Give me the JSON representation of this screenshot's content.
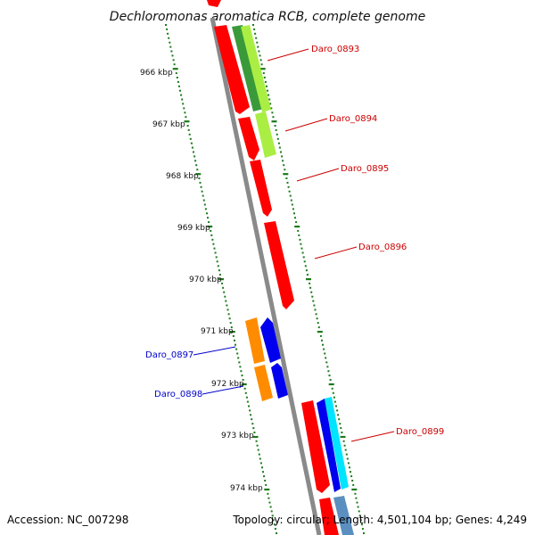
{
  "title": "Dechloromonas aromatica RCB, complete genome",
  "accession": "Accession: NC_007298",
  "summary": "Topology: circular; Length: 4,501,104 bp; Genes: 4,249",
  "ticks": [
    {
      "label": "966 kbp"
    },
    {
      "label": "967 kbp"
    },
    {
      "label": "968 kbp"
    },
    {
      "label": "969 kbp"
    },
    {
      "label": "970 kbp"
    },
    {
      "label": "971 kbp"
    },
    {
      "label": "972 kbp"
    },
    {
      "label": "973 kbp"
    },
    {
      "label": "974 kbp"
    }
  ],
  "gene_labels": {
    "g0893": "Daro_0893",
    "g0894": "Daro_0894",
    "g0895": "Daro_0895",
    "g0896": "Daro_0896",
    "g0897": "Daro_0897",
    "g0898": "Daro_0898",
    "g0899": "Daro_0899"
  },
  "colors": {
    "forward_label": "#cc0000",
    "reverse_label": "#0000cc",
    "cds_red": "#ff0000",
    "cds_blue": "#0000ee",
    "orange": "#ff8c00",
    "green": "#3a9a3a",
    "lime": "#aaee44",
    "cyan": "#00e5ff",
    "steel": "#5b8fc0",
    "backbone": "#8a8a8a",
    "tick": "#1a7a1a"
  }
}
